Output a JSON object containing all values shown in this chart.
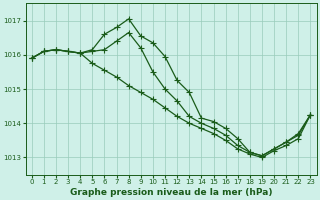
{
  "title": "Graphe pression niveau de la mer (hPa)",
  "bg_color": "#cff0e8",
  "grid_color": "#99ccbb",
  "line_color": "#1a5c1a",
  "marker_color": "#1a5c1a",
  "ylim": [
    1012.5,
    1017.5
  ],
  "yticks": [
    1013,
    1014,
    1015,
    1016,
    1017
  ],
  "xlim": [
    -0.5,
    23.5
  ],
  "xticks": [
    0,
    1,
    2,
    3,
    4,
    5,
    6,
    7,
    8,
    9,
    10,
    11,
    12,
    13,
    14,
    15,
    16,
    17,
    18,
    19,
    20,
    21,
    22,
    23
  ],
  "xtick_labels": [
    "0",
    "1",
    "2",
    "3",
    "4",
    "5",
    "6",
    "7",
    "8",
    "9",
    "10",
    "11",
    "12",
    "13",
    "14",
    "15",
    "16",
    "17",
    "18",
    "19",
    "20",
    "21",
    "22",
    "23"
  ],
  "series": [
    [
      1015.9,
      1016.1,
      1016.15,
      1016.1,
      1016.05,
      1016.15,
      1016.6,
      1016.8,
      1017.05,
      1016.55,
      1016.35,
      1015.95,
      1015.25,
      1014.9,
      1014.15,
      1014.05,
      1013.85,
      1013.55,
      1013.15,
      1013.05,
      1013.25,
      1013.45,
      1013.65,
      1014.25
    ],
    [
      1015.9,
      1016.1,
      1016.15,
      1016.1,
      1016.05,
      1016.1,
      1016.15,
      1016.4,
      1016.65,
      1016.2,
      1015.5,
      1015.0,
      1014.65,
      1014.2,
      1014.0,
      1013.85,
      1013.65,
      1013.35,
      1013.15,
      1013.05,
      1013.25,
      1013.45,
      1013.7,
      1014.25
    ],
    [
      1015.9,
      1016.1,
      1016.15,
      1016.1,
      1016.05,
      1015.75,
      1015.55,
      1015.35,
      1015.1,
      1014.9,
      1014.7,
      1014.45,
      1014.2,
      1014.0,
      1013.85,
      1013.7,
      1013.5,
      1013.25,
      1013.1,
      1013.0,
      1013.2,
      1013.35,
      1013.55,
      1014.25
    ]
  ],
  "marker_size": 2.5,
  "linewidth": 0.9,
  "title_fontsize": 6.5,
  "tick_fontsize": 5.0
}
